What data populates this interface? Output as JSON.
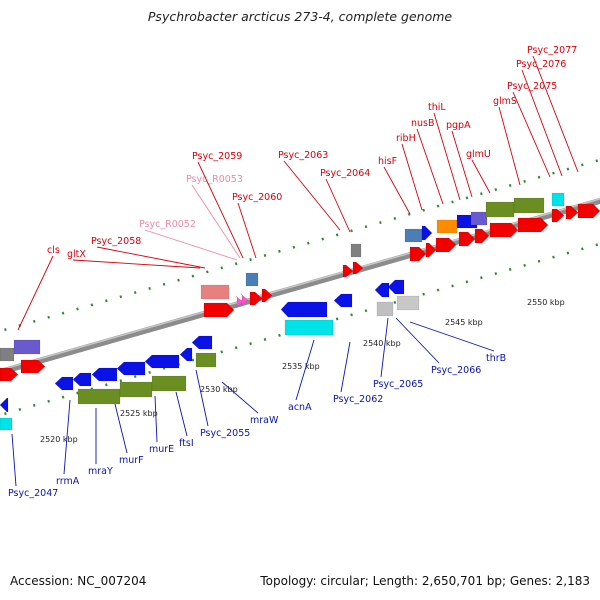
{
  "title": "Psychrobacter arcticus 273-4, complete genome",
  "footer": {
    "accession_label": "Accession:",
    "accession": "NC_007204",
    "topology_text": "Topology: circular; Length: 2,650,701 bp; Genes: 2,183"
  },
  "colors": {
    "upper_label": "#d9000d",
    "rna_label": "#f08aa5",
    "lower_label": "#0a14b4",
    "backbone": "#8c8c8c",
    "grid_dot": "#2e8b2e"
  },
  "genome_map": {
    "kbp_ticks": [
      {
        "label": "2520 kbp",
        "kbp": 2520
      },
      {
        "label": "2525 kbp",
        "kbp": 2525
      },
      {
        "label": "2530 kbp",
        "kbp": 2530
      },
      {
        "label": "2535 kbp",
        "kbp": 2535
      },
      {
        "label": "2540 kbp",
        "kbp": 2540
      },
      {
        "label": "2545 kbp",
        "kbp": 2545
      },
      {
        "label": "2550 kbp",
        "kbp": 2550
      }
    ],
    "upper_labels": [
      {
        "text": "cls",
        "kind": "gene"
      },
      {
        "text": "gltX",
        "kind": "gene"
      },
      {
        "text": "Psyc_2058",
        "kind": "gene"
      },
      {
        "text": "Psyc_R0052",
        "kind": "rna"
      },
      {
        "text": "Psyc_R0053",
        "kind": "rna"
      },
      {
        "text": "Psyc_2059",
        "kind": "gene"
      },
      {
        "text": "Psyc_2060",
        "kind": "gene"
      },
      {
        "text": "Psyc_2063",
        "kind": "gene"
      },
      {
        "text": "Psyc_2064",
        "kind": "gene"
      },
      {
        "text": "hisF",
        "kind": "gene"
      },
      {
        "text": "ribH",
        "kind": "gene"
      },
      {
        "text": "nusB",
        "kind": "gene"
      },
      {
        "text": "thiL",
        "kind": "gene"
      },
      {
        "text": "pgpA",
        "kind": "gene"
      },
      {
        "text": "glmU",
        "kind": "gene"
      },
      {
        "text": "glmS",
        "kind": "gene"
      },
      {
        "text": "Psyc_2075",
        "kind": "gene"
      },
      {
        "text": "Psyc_2076",
        "kind": "gene"
      },
      {
        "text": "Psyc_2077",
        "kind": "gene"
      }
    ],
    "lower_labels": [
      {
        "text": "Psyc_2047"
      },
      {
        "text": "rrmA"
      },
      {
        "text": "mraY"
      },
      {
        "text": "murF"
      },
      {
        "text": "murE"
      },
      {
        "text": "ftsI"
      },
      {
        "text": "Psyc_2055"
      },
      {
        "text": "mraW"
      },
      {
        "text": "acnA"
      },
      {
        "text": "Psyc_2062"
      },
      {
        "text": "Psyc_2065"
      },
      {
        "text": "Psyc_2066"
      },
      {
        "text": "thrB"
      }
    ]
  }
}
